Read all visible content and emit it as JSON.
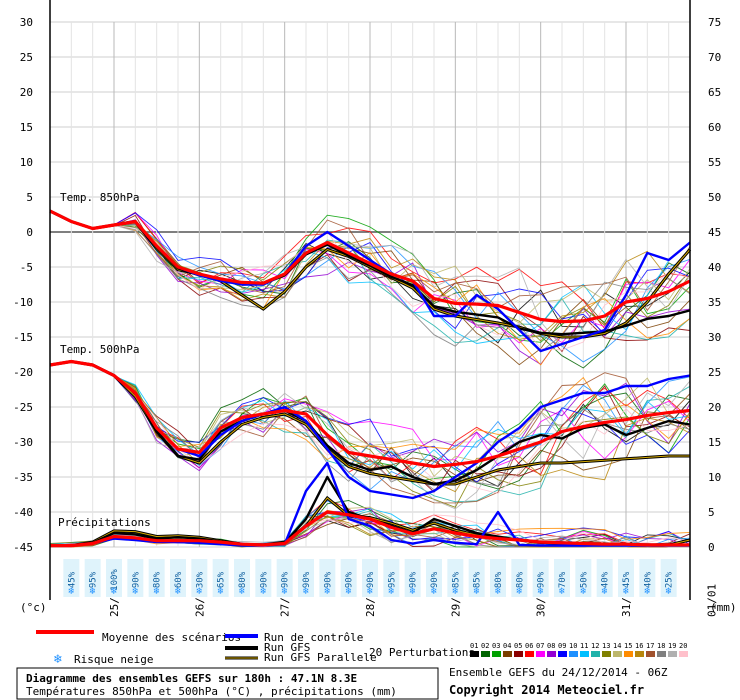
{
  "chart_data": {
    "type": "line",
    "left_axis": {
      "unit": "(°c)",
      "ticks": [
        30,
        25,
        20,
        15,
        10,
        5,
        0,
        -5,
        -10,
        -15,
        -20,
        -25,
        -30,
        -35,
        -40,
        -45
      ],
      "range": [
        -45,
        30
      ]
    },
    "right_axis": {
      "unit": "(mm)",
      "ticks": [
        75,
        70,
        65,
        60,
        55,
        50,
        45,
        40,
        35,
        30,
        25,
        20,
        15,
        10,
        5,
        0
      ],
      "range": [
        0,
        75
      ]
    },
    "x_axis": {
      "ticks": [
        "25/12",
        "26/12",
        "27/12",
        "28/12",
        "29/12",
        "30/12",
        "31/12",
        "01/01"
      ],
      "range_hours": [
        6,
        186
      ]
    },
    "panel_labels": {
      "t850": "Temp. 850hPa",
      "t500": "Temp. 500hPa",
      "precip": "Précipitations"
    },
    "snow_risk_percent": [
      "45%",
      "95%",
      "100%",
      "90%",
      "80%",
      "60%",
      "30%",
      "65%",
      "80%",
      "90%",
      "90%",
      "90%",
      "90%",
      "90%",
      "90%",
      "95%",
      "90%",
      "90%",
      "85%",
      "85%",
      "80%",
      "80%",
      "90%",
      "70%",
      "50%",
      "40%",
      "45%",
      "40%",
      "25%"
    ],
    "series": [
      {
        "name": "Moyenne des scénarios",
        "color": "#ff0000",
        "panel": "t850",
        "x": [
          6,
          12,
          18,
          24,
          30,
          36,
          42,
          48,
          54,
          60,
          66,
          72,
          78,
          84,
          90,
          96,
          102,
          108,
          114,
          120,
          126,
          132,
          138,
          144,
          150,
          156,
          162,
          168,
          174,
          180,
          186
        ],
        "y": [
          3,
          1.5,
          0.5,
          1,
          1.5,
          -2,
          -5,
          -6,
          -6.7,
          -7.2,
          -7.3,
          -6,
          -3,
          -1.5,
          -3,
          -4.5,
          -6,
          -7,
          -9.5,
          -10.2,
          -10.3,
          -10.5,
          -11.5,
          -12.5,
          -12.8,
          -12.7,
          -12,
          -10,
          -9.5,
          -8.5,
          -7
        ]
      },
      {
        "name": "Run de contrôle",
        "color": "#0000ff",
        "panel": "t850",
        "x": [
          6,
          12,
          18,
          24,
          30,
          36,
          42,
          48,
          54,
          60,
          66,
          72,
          78,
          84,
          90,
          96,
          102,
          108,
          114,
          120,
          126,
          132,
          138,
          144,
          150,
          156,
          162,
          168,
          174,
          180,
          186
        ],
        "y": [
          3,
          1.5,
          0.5,
          1,
          1.5,
          -2,
          -5,
          -6.2,
          -7,
          -7.5,
          -7.5,
          -6,
          -2,
          0,
          -2,
          -4,
          -6,
          -7,
          -12,
          -12,
          -9,
          -11,
          -14,
          -17,
          -16,
          -15,
          -14,
          -9,
          -3,
          -4,
          -1.5
        ]
      },
      {
        "name": "Run GFS",
        "color": "#000000",
        "panel": "t850",
        "x": [
          6,
          12,
          18,
          24,
          30,
          36,
          42,
          48,
          54,
          60,
          66,
          72,
          78,
          84,
          90,
          96,
          102,
          108,
          114,
          120,
          126,
          132,
          138,
          144,
          150,
          156,
          162,
          168,
          174,
          180,
          186
        ],
        "y": [
          3,
          1.5,
          0.5,
          1,
          1.5,
          -2.2,
          -5.2,
          -6.2,
          -6.8,
          -7.5,
          -7.4,
          -6.2,
          -3.2,
          -1.8,
          -3.4,
          -4.8,
          -6.4,
          -7.6,
          -10.6,
          -11.4,
          -11.8,
          -12.2,
          -13.8,
          -14.4,
          -14.6,
          -14.4,
          -14.2,
          -13.4,
          -12.4,
          -12,
          -11.2
        ]
      },
      {
        "name": "Run GFS Parallele",
        "color": "#d4a800",
        "panel": "t850",
        "x": [
          6,
          12,
          18,
          24,
          30,
          36,
          42,
          48,
          54,
          60,
          66,
          72,
          78,
          84,
          90,
          96,
          102,
          108,
          114,
          120,
          126,
          132,
          138,
          144,
          150,
          156,
          162,
          168,
          174,
          180,
          186
        ],
        "y": [
          3,
          1.5,
          0.5,
          1,
          1.5,
          -2.4,
          -5.4,
          -6,
          -7,
          -9,
          -11,
          -8.5,
          -5,
          -2.5,
          -3.5,
          -5,
          -6.5,
          -8,
          -11,
          -12,
          -12.5,
          -13,
          -13.6,
          -14.5,
          -15,
          -15,
          -14.5,
          -13,
          -10,
          -6,
          -2.5
        ]
      },
      {
        "name": "Moyenne des scénarios",
        "color": "#ff0000",
        "panel": "t500",
        "x": [
          6,
          12,
          18,
          24,
          30,
          36,
          42,
          48,
          54,
          60,
          66,
          72,
          78,
          84,
          90,
          96,
          102,
          108,
          114,
          120,
          126,
          132,
          138,
          144,
          150,
          156,
          162,
          168,
          174,
          180,
          186
        ],
        "y": [
          -19,
          -18.5,
          -19,
          -20.5,
          -23,
          -28,
          -31,
          -31.5,
          -28,
          -26.5,
          -26,
          -25.5,
          -26,
          -29,
          -31.5,
          -32,
          -32.5,
          -33,
          -33.5,
          -33.2,
          -32.8,
          -32,
          -31,
          -30,
          -28.5,
          -27.8,
          -27.2,
          -26.8,
          -26.2,
          -25.8,
          -25.5
        ]
      },
      {
        "name": "Run de contrôle",
        "color": "#0000ff",
        "panel": "t500",
        "x": [
          6,
          12,
          18,
          24,
          30,
          36,
          42,
          48,
          54,
          60,
          66,
          72,
          78,
          84,
          90,
          96,
          102,
          108,
          114,
          120,
          126,
          132,
          138,
          144,
          150,
          156,
          162,
          168,
          174,
          180,
          186
        ],
        "y": [
          -19,
          -18.5,
          -19,
          -20.5,
          -23,
          -28,
          -31,
          -32,
          -29,
          -27,
          -26,
          -25,
          -27,
          -31,
          -35,
          -37,
          -37.5,
          -38,
          -37,
          -35,
          -33,
          -30,
          -28,
          -25,
          -24,
          -23,
          -23,
          -22,
          -22,
          -21,
          -20.5
        ]
      },
      {
        "name": "Run GFS",
        "color": "#000000",
        "panel": "t500",
        "x": [
          6,
          12,
          18,
          24,
          30,
          36,
          42,
          48,
          54,
          60,
          66,
          72,
          78,
          84,
          90,
          96,
          102,
          108,
          114,
          120,
          126,
          132,
          138,
          144,
          150,
          156,
          162,
          168,
          174,
          180,
          186
        ],
        "y": [
          -19,
          -18.5,
          -19,
          -20.5,
          -23,
          -28.5,
          -32,
          -32.5,
          -28.5,
          -27,
          -26,
          -25.5,
          -27,
          -30.5,
          -33,
          -34,
          -33.5,
          -35,
          -36,
          -35.5,
          -34,
          -32,
          -30,
          -29,
          -29.5,
          -28,
          -27.5,
          -29,
          -28,
          -27,
          -27.5
        ]
      },
      {
        "name": "Run GFS Parallele",
        "color": "#d4a800",
        "panel": "t500",
        "x": [
          6,
          12,
          18,
          24,
          30,
          36,
          42,
          48,
          54,
          60,
          66,
          72,
          78,
          84,
          90,
          96,
          102,
          108,
          114,
          120,
          126,
          132,
          138,
          144,
          150,
          156,
          162,
          168,
          174,
          180,
          186
        ],
        "y": [
          -19,
          -18.5,
          -19,
          -20.5,
          -23.5,
          -28.5,
          -32,
          -33,
          -30,
          -27.5,
          -26.5,
          -26,
          -27.5,
          -31,
          -33.5,
          -34.5,
          -35,
          -35.5,
          -36,
          -36,
          -35,
          -34,
          -33.5,
          -33,
          -33,
          -32.8,
          -32.6,
          -32.4,
          -32.2,
          -32,
          -32
        ]
      },
      {
        "name": "Moyenne des scénarios",
        "color": "#ff0000",
        "panel": "precip",
        "x": [
          6,
          12,
          18,
          24,
          30,
          36,
          42,
          48,
          54,
          60,
          66,
          72,
          78,
          84,
          90,
          96,
          102,
          108,
          114,
          120,
          126,
          132,
          138,
          144,
          150,
          156,
          162,
          168,
          174,
          180,
          186
        ],
        "y": [
          0.2,
          0.2,
          0.5,
          1.5,
          1.3,
          0.9,
          0.9,
          0.9,
          0.7,
          0.4,
          0.3,
          0.5,
          3,
          5,
          4.6,
          4,
          2.8,
          1.9,
          2.6,
          2,
          1.5,
          1.2,
          1,
          0.7,
          0.6,
          0.5,
          0.4,
          0.4,
          0.3,
          0.3,
          0.3
        ]
      },
      {
        "name": "Run de contrôle",
        "color": "#0000ff",
        "panel": "precip",
        "x": [
          6,
          12,
          18,
          24,
          30,
          36,
          42,
          48,
          54,
          60,
          66,
          72,
          78,
          84,
          90,
          96,
          102,
          108,
          114,
          120,
          126,
          132,
          138,
          144,
          150,
          156,
          162,
          168,
          174,
          180,
          186
        ],
        "y": [
          0.2,
          0.2,
          0.5,
          1.2,
          1,
          0.7,
          0.7,
          0.6,
          0.4,
          0.2,
          0.2,
          0.4,
          8,
          12,
          4,
          3,
          1,
          0.5,
          1,
          0.6,
          0.4,
          5,
          0.3,
          0.2,
          0.2,
          0.2,
          0.2,
          0.2,
          0.2,
          0.2,
          0.2
        ]
      },
      {
        "name": "Run GFS",
        "color": "#000000",
        "panel": "precip",
        "x": [
          6,
          12,
          18,
          24,
          30,
          36,
          42,
          48,
          54,
          60,
          66,
          72,
          78,
          84,
          90,
          96,
          102,
          108,
          114,
          120,
          126,
          132,
          138,
          144,
          150,
          156,
          162,
          168,
          174,
          180,
          186
        ],
        "y": [
          0.2,
          0.2,
          0.6,
          2,
          1.8,
          1.2,
          1.4,
          1.2,
          0.8,
          0.3,
          0.3,
          0.6,
          4,
          10,
          5,
          4,
          3,
          2,
          4,
          3,
          2,
          1.5,
          1,
          0.6,
          0.5,
          0.4,
          0.4,
          0.3,
          0.3,
          0.3,
          0.3
        ]
      },
      {
        "name": "Run GFS Parallele",
        "color": "#d4a800",
        "panel": "precip",
        "x": [
          6,
          12,
          18,
          24,
          30,
          36,
          42,
          48,
          54,
          60,
          66,
          72,
          78,
          84,
          90,
          96,
          102,
          108,
          114,
          120,
          126,
          132,
          138,
          144,
          150,
          156,
          162,
          168,
          174,
          180,
          186
        ],
        "y": [
          0.2,
          0.2,
          0.7,
          2.3,
          2.2,
          1.5,
          1.6,
          1.4,
          0.9,
          0.4,
          0.3,
          0.7,
          3,
          7,
          4.5,
          4.2,
          3.4,
          2.4,
          3.4,
          2.4,
          1.7,
          1.3,
          1,
          0.7,
          0.6,
          0.5,
          0.4,
          0.4,
          0.3,
          0.3,
          1
        ]
      }
    ],
    "perturbations": {
      "label": "20 Perturbations",
      "ids": [
        "01",
        "02",
        "03",
        "04",
        "05",
        "06",
        "07",
        "08",
        "09",
        "10",
        "11",
        "12",
        "13",
        "14",
        "15",
        "16",
        "17",
        "18",
        "19",
        "20"
      ],
      "colors": [
        "#000000",
        "#006400",
        "#00a000",
        "#7b3f00",
        "#8b0000",
        "#ff0000",
        "#ff00ff",
        "#9400d3",
        "#0000ff",
        "#1e90ff",
        "#00bfff",
        "#20b2aa",
        "#808000",
        "#bdb76b",
        "#ff8c00",
        "#b8860b",
        "#a0522d",
        "#808080",
        "#b0b0b0",
        "#ffc0cb"
      ]
    }
  },
  "legend": {
    "mean": {
      "label": "Moyenne des scénarios",
      "color": "#ff0000"
    },
    "snow": {
      "label": "Risque neige"
    },
    "control": {
      "label": "Run de contrôle",
      "color": "#0000ff"
    },
    "gfs": {
      "label": "Run GFS",
      "color": "#000000"
    },
    "gfs_par": {
      "label": "Run GFS Parallele",
      "color": "#d4a800"
    }
  },
  "footer": {
    "title": "Diagramme des ensembles GEFS sur 180h : 47.1N 8.3E",
    "subtitle": "Températures 850hPa et 500hPa (°C) , précipitations (mm)",
    "run": "Ensemble GEFS du 24/12/2014 - 06Z",
    "copyright": "Copyright 2014 Meteociel.fr"
  }
}
